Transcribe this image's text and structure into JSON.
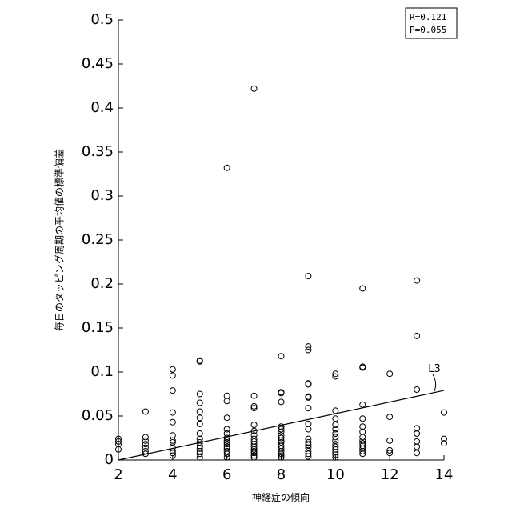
{
  "chart_data": {
    "type": "scatter",
    "title": "",
    "xlabel": "神経症の傾向",
    "ylabel": "毎日のタッピング周期の平均値の標準偏差",
    "xlim": [
      2,
      14
    ],
    "ylim": [
      0,
      0.5
    ],
    "x_ticks": [
      2,
      4,
      6,
      8,
      10,
      12,
      14
    ],
    "x_tick_labels": [
      "2",
      "4",
      "6",
      "8",
      "10",
      "12",
      "14"
    ],
    "y_ticks": [
      0,
      0.05,
      0.1,
      0.15,
      0.2,
      0.25,
      0.3,
      0.35,
      0.4,
      0.45,
      0.5
    ],
    "y_tick_labels": [
      "0",
      "0.05",
      "0.1",
      "0.15",
      "0.2",
      "0.25",
      "0.3",
      "0.35",
      "0.4",
      "0.45",
      "0.5"
    ],
    "grid": false,
    "marker": "open-circle",
    "stats": [
      "R=0.121",
      "P=0.055"
    ],
    "stats_position": "top-right",
    "fit_line": {
      "label": "L3",
      "x": [
        2,
        14
      ],
      "y": [
        0,
        0.079
      ]
    },
    "points": [
      [
        2,
        0.024
      ],
      [
        2,
        0.021
      ],
      [
        2,
        0.018
      ],
      [
        2,
        0.012
      ],
      [
        3,
        0.055
      ],
      [
        3,
        0.026
      ],
      [
        3,
        0.022
      ],
      [
        3,
        0.018
      ],
      [
        3,
        0.014
      ],
      [
        3,
        0.01
      ],
      [
        3,
        0.007
      ],
      [
        4,
        0.103
      ],
      [
        4,
        0.096
      ],
      [
        4,
        0.079
      ],
      [
        4,
        0.054
      ],
      [
        4,
        0.043
      ],
      [
        4,
        0.028
      ],
      [
        4,
        0.022
      ],
      [
        4,
        0.02
      ],
      [
        4,
        0.014
      ],
      [
        4,
        0.01
      ],
      [
        4,
        0.008
      ],
      [
        4,
        0.005
      ],
      [
        5,
        0.113
      ],
      [
        5,
        0.112
      ],
      [
        5,
        0.075
      ],
      [
        5,
        0.065
      ],
      [
        5,
        0.055
      ],
      [
        5,
        0.048
      ],
      [
        5,
        0.041
      ],
      [
        5,
        0.03
      ],
      [
        5,
        0.024
      ],
      [
        5,
        0.02
      ],
      [
        5,
        0.016
      ],
      [
        5,
        0.013
      ],
      [
        5,
        0.01
      ],
      [
        5,
        0.007
      ],
      [
        5,
        0.003
      ],
      [
        6,
        0.332
      ],
      [
        6,
        0.073
      ],
      [
        6,
        0.067
      ],
      [
        6,
        0.048
      ],
      [
        6,
        0.035
      ],
      [
        6,
        0.03
      ],
      [
        6,
        0.025
      ],
      [
        6,
        0.022
      ],
      [
        6,
        0.02
      ],
      [
        6,
        0.018
      ],
      [
        6,
        0.015
      ],
      [
        6,
        0.013
      ],
      [
        6,
        0.01
      ],
      [
        6,
        0.007
      ],
      [
        6,
        0.003
      ],
      [
        7,
        0.422
      ],
      [
        7,
        0.073
      ],
      [
        7,
        0.061
      ],
      [
        7,
        0.059
      ],
      [
        7,
        0.04
      ],
      [
        7,
        0.033
      ],
      [
        7,
        0.028
      ],
      [
        7,
        0.024
      ],
      [
        7,
        0.021
      ],
      [
        7,
        0.018
      ],
      [
        7,
        0.015
      ],
      [
        7,
        0.012
      ],
      [
        7,
        0.01
      ],
      [
        7,
        0.008
      ],
      [
        7,
        0.005
      ],
      [
        7,
        0.003
      ],
      [
        8,
        0.118
      ],
      [
        8,
        0.077
      ],
      [
        8,
        0.076
      ],
      [
        8,
        0.066
      ],
      [
        8,
        0.038
      ],
      [
        8,
        0.035
      ],
      [
        8,
        0.032
      ],
      [
        8,
        0.028
      ],
      [
        8,
        0.025
      ],
      [
        8,
        0.022
      ],
      [
        8,
        0.02
      ],
      [
        8,
        0.016
      ],
      [
        8,
        0.013
      ],
      [
        8,
        0.01
      ],
      [
        8,
        0.007
      ],
      [
        8,
        0.005
      ],
      [
        8,
        0.003
      ],
      [
        9,
        0.209
      ],
      [
        9,
        0.129
      ],
      [
        9,
        0.125
      ],
      [
        9,
        0.087
      ],
      [
        9,
        0.086
      ],
      [
        9,
        0.072
      ],
      [
        9,
        0.071
      ],
      [
        9,
        0.059
      ],
      [
        9,
        0.041
      ],
      [
        9,
        0.035
      ],
      [
        9,
        0.024
      ],
      [
        9,
        0.02
      ],
      [
        9,
        0.017
      ],
      [
        9,
        0.014
      ],
      [
        9,
        0.01
      ],
      [
        9,
        0.007
      ],
      [
        9,
        0.004
      ],
      [
        10,
        0.098
      ],
      [
        10,
        0.095
      ],
      [
        10,
        0.056
      ],
      [
        10,
        0.047
      ],
      [
        10,
        0.04
      ],
      [
        10,
        0.035
      ],
      [
        10,
        0.03
      ],
      [
        10,
        0.026
      ],
      [
        10,
        0.022
      ],
      [
        10,
        0.018
      ],
      [
        10,
        0.015
      ],
      [
        10,
        0.012
      ],
      [
        10,
        0.009
      ],
      [
        10,
        0.006
      ],
      [
        10,
        0.003
      ],
      [
        11,
        0.195
      ],
      [
        11,
        0.106
      ],
      [
        11,
        0.105
      ],
      [
        11,
        0.063
      ],
      [
        11,
        0.047
      ],
      [
        11,
        0.038
      ],
      [
        11,
        0.032
      ],
      [
        11,
        0.026
      ],
      [
        11,
        0.022
      ],
      [
        11,
        0.019
      ],
      [
        11,
        0.016
      ],
      [
        11,
        0.013
      ],
      [
        11,
        0.01
      ],
      [
        11,
        0.007
      ],
      [
        12,
        0.098
      ],
      [
        12,
        0.049
      ],
      [
        12,
        0.022
      ],
      [
        12,
        0.011
      ],
      [
        12,
        0.008
      ],
      [
        13,
        0.204
      ],
      [
        13,
        0.141
      ],
      [
        13,
        0.08
      ],
      [
        13,
        0.036
      ],
      [
        13,
        0.03
      ],
      [
        13,
        0.021
      ],
      [
        13,
        0.015
      ],
      [
        13,
        0.008
      ],
      [
        14,
        0.054
      ],
      [
        14,
        0.024
      ],
      [
        14,
        0.019
      ]
    ]
  }
}
